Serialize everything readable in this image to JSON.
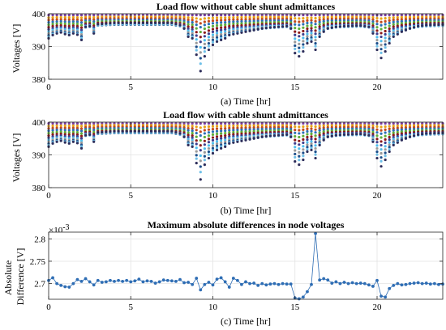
{
  "chart_data": [
    {
      "type": "scatter",
      "title": "Load flow without cable shunt admittances",
      "xlabel": "(a) Time [hr]",
      "ylabel": "Voltages [V]",
      "xlim": [
        0,
        24
      ],
      "ylim": [
        380,
        400
      ],
      "xticks": [
        "0",
        "5",
        "10",
        "15",
        "20"
      ],
      "yticks": [
        "380",
        "390",
        "400"
      ],
      "grid": true,
      "series_colors": [
        "#7b3fa0",
        "#e8a317",
        "#c24a1c",
        "#2a6fb5",
        "#5fae3a",
        "#8b1a1a",
        "#3e3e8c",
        "#4dbeee",
        "#9a9a9a",
        "#1c4e8a",
        "#6fc0e8",
        "#2d2d5a"
      ],
      "nodes": [
        {
          "depth": 0.0
        },
        {
          "depth": 0.05
        },
        {
          "depth": 0.1
        },
        {
          "depth": 0.15
        },
        {
          "depth": 0.22
        },
        {
          "depth": 0.3
        },
        {
          "depth": 0.38
        },
        {
          "depth": 0.48
        },
        {
          "depth": 0.58
        },
        {
          "depth": 0.7
        },
        {
          "depth": 0.82
        },
        {
          "depth": 1.0
        }
      ],
      "lowest_node_profile": {
        "x": [
          0,
          0.25,
          0.5,
          0.75,
          1,
          1.25,
          1.5,
          1.75,
          2,
          2.25,
          2.5,
          2.75,
          3,
          3.5,
          4,
          4.5,
          5,
          5.5,
          6,
          6.5,
          7,
          7.5,
          8,
          8.25,
          8.5,
          8.75,
          9,
          9.25,
          9.5,
          9.75,
          10,
          10.25,
          10.5,
          10.75,
          11,
          11.5,
          12,
          12.5,
          13,
          13.5,
          14,
          14.5,
          14.75,
          15,
          15.25,
          15.5,
          15.75,
          16,
          16.25,
          16.5,
          16.75,
          17,
          17.5,
          18,
          18.5,
          19,
          19.5,
          19.75,
          20,
          20.25,
          20.5,
          20.75,
          21,
          21.5,
          22,
          22.5,
          23,
          23.5,
          24
        ],
        "y": [
          392.5,
          393.5,
          394,
          394.3,
          393.8,
          393.5,
          394,
          393.6,
          392,
          396,
          396.2,
          394,
          396.8,
          397,
          397.2,
          397.2,
          397.2,
          397.2,
          397.2,
          397.2,
          397.2,
          397.2,
          396.5,
          395.5,
          393,
          392.5,
          387.5,
          382.5,
          387,
          389,
          390.5,
          391.5,
          392,
          392.5,
          393.5,
          394,
          394.5,
          395,
          395.5,
          395.8,
          396,
          396.2,
          395.5,
          388,
          387,
          388.5,
          391,
          391.5,
          389,
          393,
          394.5,
          395.5,
          396,
          396.2,
          396.3,
          396.4,
          396,
          394,
          389,
          386.5,
          388.5,
          391,
          393,
          394.5,
          395.5,
          396.2,
          396.5,
          396.6,
          396.7
        ]
      }
    },
    {
      "type": "scatter",
      "title": "Load flow with cable shunt admittances",
      "xlabel": "(b) Time [hr]",
      "ylabel": "Voltages [V]",
      "xlim": [
        0,
        24
      ],
      "ylim": [
        380,
        400
      ],
      "xticks": [
        "0",
        "5",
        "10",
        "15",
        "20"
      ],
      "yticks": [
        "380",
        "390",
        "400"
      ],
      "grid": true,
      "series_colors": [
        "#7b3fa0",
        "#e8a317",
        "#c24a1c",
        "#2a6fb5",
        "#5fae3a",
        "#8b1a1a",
        "#3e3e8c",
        "#4dbeee",
        "#9a9a9a",
        "#1c4e8a",
        "#6fc0e8",
        "#2d2d5a"
      ],
      "nodes": [
        {
          "depth": 0.0
        },
        {
          "depth": 0.05
        },
        {
          "depth": 0.1
        },
        {
          "depth": 0.15
        },
        {
          "depth": 0.22
        },
        {
          "depth": 0.3
        },
        {
          "depth": 0.38
        },
        {
          "depth": 0.48
        },
        {
          "depth": 0.58
        },
        {
          "depth": 0.7
        },
        {
          "depth": 0.82
        },
        {
          "depth": 1.0
        }
      ],
      "lowest_node_profile": {
        "x": [
          0,
          0.25,
          0.5,
          0.75,
          1,
          1.25,
          1.5,
          1.75,
          2,
          2.25,
          2.5,
          2.75,
          3,
          3.5,
          4,
          4.5,
          5,
          5.5,
          6,
          6.5,
          7,
          7.5,
          8,
          8.25,
          8.5,
          8.75,
          9,
          9.25,
          9.5,
          9.75,
          10,
          10.25,
          10.5,
          10.75,
          11,
          11.5,
          12,
          12.5,
          13,
          13.5,
          14,
          14.5,
          14.75,
          15,
          15.25,
          15.5,
          15.75,
          16,
          16.25,
          16.5,
          16.75,
          17,
          17.5,
          18,
          18.5,
          19,
          19.5,
          19.75,
          20,
          20.25,
          20.5,
          20.75,
          21,
          21.5,
          22,
          22.5,
          23,
          23.5,
          24
        ],
        "y": [
          392.5,
          393.5,
          394,
          394.3,
          393.8,
          393.5,
          394,
          393.6,
          392,
          396,
          396.2,
          394,
          396.8,
          397,
          397.2,
          397.2,
          397.2,
          397.2,
          397.2,
          397.2,
          397.2,
          397.2,
          396.5,
          395.5,
          393,
          392.5,
          387.5,
          382.5,
          387,
          389,
          390.5,
          391.5,
          392,
          392.5,
          393.5,
          394,
          394.5,
          395,
          395.5,
          395.8,
          396,
          396.2,
          395.5,
          388,
          387,
          388.5,
          391,
          391.5,
          389,
          393,
          394.5,
          395.5,
          396,
          396.2,
          396.3,
          396.4,
          396,
          394,
          389,
          386.5,
          388.5,
          391,
          393,
          394.5,
          395.5,
          396.2,
          396.5,
          396.6,
          396.7
        ]
      }
    },
    {
      "type": "line",
      "title": "Maximum absolute differences in node voltages",
      "xlabel": "(c) Time [hr]",
      "ylabel": "Absolute Difference [V]",
      "y_multiplier": "×10",
      "y_exponent": "-3",
      "xlim": [
        0,
        24
      ],
      "ylim": [
        2.665,
        2.815
      ],
      "xticks": [
        "0",
        "5",
        "10",
        "15",
        "20"
      ],
      "yticks": [
        "2.7",
        "2.75",
        "2.8"
      ],
      "grid": true,
      "color": "#2e6db4",
      "x": [
        0,
        0.25,
        0.5,
        0.75,
        1,
        1.25,
        1.5,
        1.75,
        2,
        2.25,
        2.5,
        2.75,
        3,
        3.25,
        3.5,
        3.75,
        4,
        4.25,
        4.5,
        4.75,
        5,
        5.25,
        5.5,
        5.75,
        6,
        6.25,
        6.5,
        6.75,
        7,
        7.25,
        7.5,
        7.75,
        8,
        8.25,
        8.5,
        8.75,
        9,
        9.25,
        9.5,
        9.75,
        10,
        10.25,
        10.5,
        10.75,
        11,
        11.25,
        11.5,
        11.75,
        12,
        12.25,
        12.5,
        12.75,
        13,
        13.25,
        13.5,
        13.75,
        14,
        14.25,
        14.5,
        14.75,
        15,
        15.25,
        15.5,
        15.75,
        16,
        16.25,
        16.5,
        16.75,
        17,
        17.25,
        17.5,
        17.75,
        18,
        18.25,
        18.5,
        18.75,
        19,
        19.25,
        19.5,
        19.75,
        20,
        20.25,
        20.5,
        20.75,
        21,
        21.25,
        21.5,
        21.75,
        22,
        22.25,
        22.5,
        22.75,
        23,
        23.25,
        23.5,
        23.75,
        24
      ],
      "y": [
        2.707,
        2.713,
        2.7,
        2.696,
        2.693,
        2.692,
        2.7,
        2.709,
        2.705,
        2.711,
        2.704,
        2.697,
        2.707,
        2.703,
        2.704,
        2.707,
        2.705,
        2.707,
        2.705,
        2.707,
        2.704,
        2.706,
        2.71,
        2.704,
        2.706,
        2.705,
        2.701,
        2.704,
        2.708,
        2.707,
        2.706,
        2.705,
        2.709,
        2.702,
        2.703,
        2.698,
        2.712,
        2.686,
        2.698,
        2.703,
        2.697,
        2.71,
        2.713,
        2.704,
        2.692,
        2.712,
        2.707,
        2.698,
        2.704,
        2.7,
        2.701,
        2.696,
        2.7,
        2.697,
        2.699,
        2.7,
        2.698,
        2.7,
        2.699,
        2.699,
        2.668,
        2.666,
        2.67,
        2.682,
        2.698,
        2.812,
        2.708,
        2.711,
        2.708,
        2.701,
        2.704,
        2.7,
        2.703,
        2.7,
        2.702,
        2.7,
        2.701,
        2.7,
        2.697,
        2.694,
        2.707,
        2.672,
        2.67,
        2.689,
        2.696,
        2.7,
        2.697,
        2.698,
        2.7,
        2.701,
        2.702,
        2.7,
        2.701,
        2.699,
        2.7,
        2.698,
        2.699
      ]
    }
  ]
}
